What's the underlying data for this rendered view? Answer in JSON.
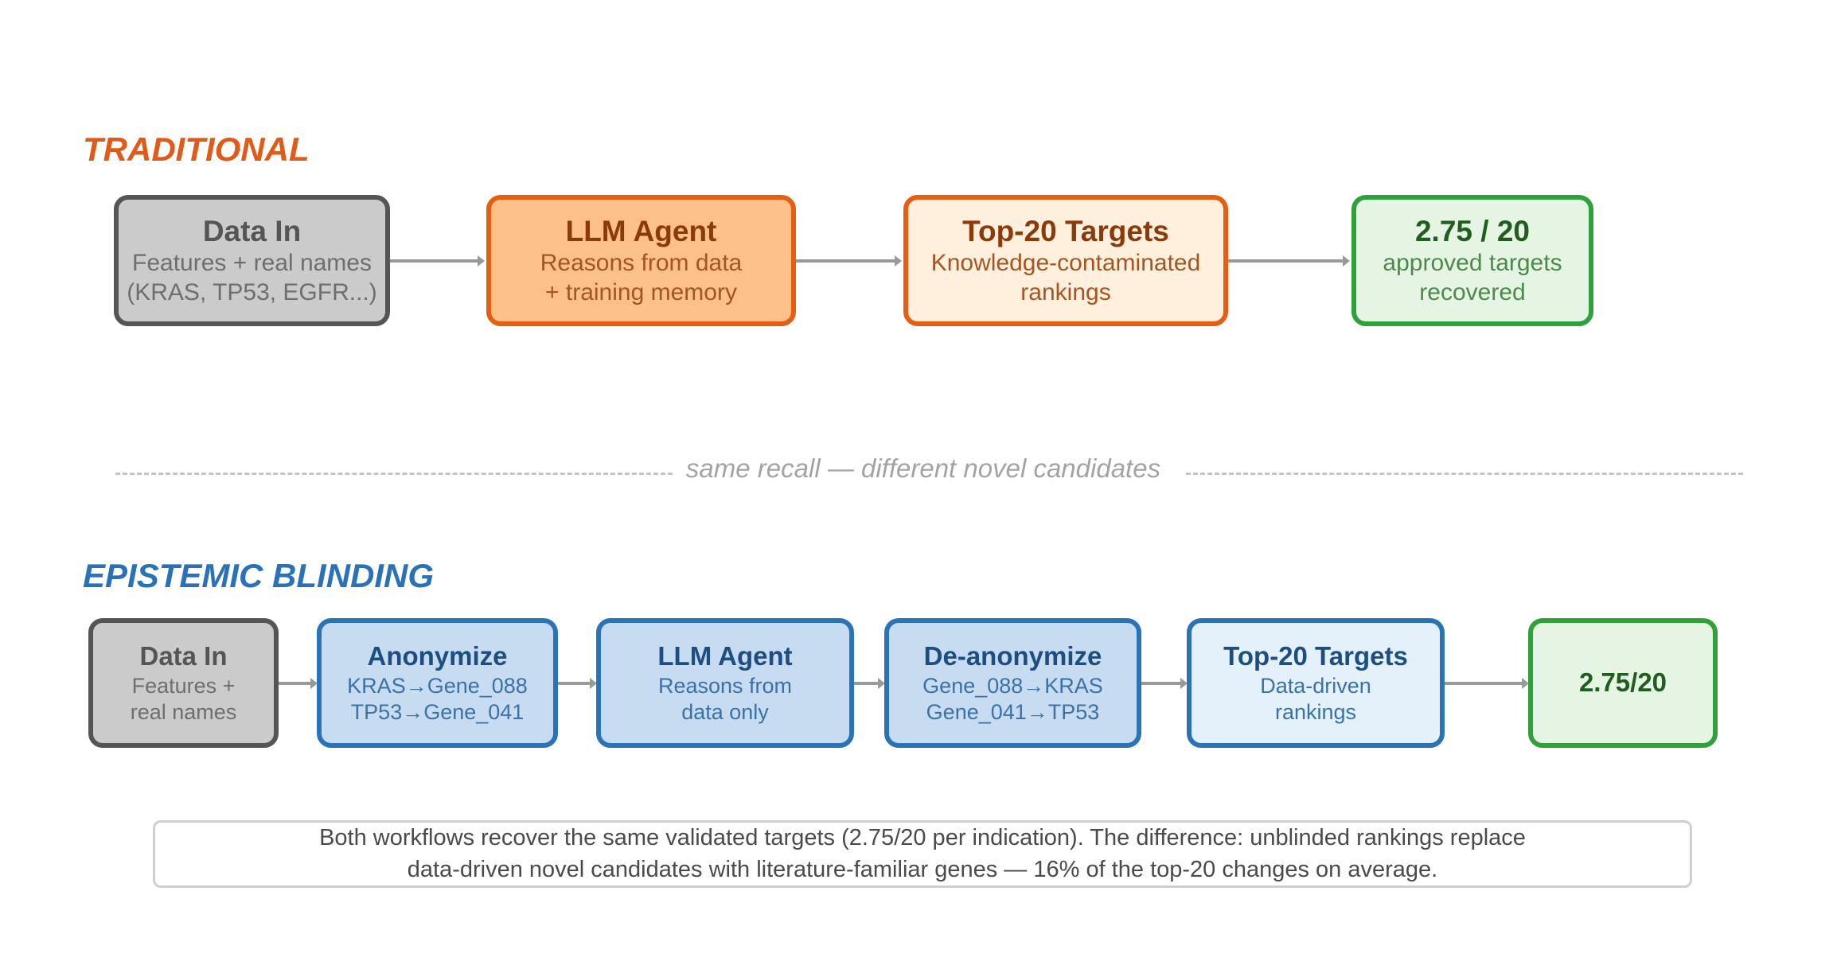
{
  "traditional": {
    "title": "TRADITIONAL",
    "title_color": "#e05a1a",
    "steps": [
      {
        "title": "Data In",
        "lines": [
          "Features + real names",
          "(KRAS, TP53, EGFR...)"
        ]
      },
      {
        "title": "LLM Agent",
        "lines": [
          "Reasons from data",
          "+ training memory"
        ]
      },
      {
        "title": "Top-20 Targets",
        "lines": [
          "Knowledge-contaminated",
          "rankings"
        ]
      },
      {
        "title": "2.75 / 20",
        "lines": [
          "approved targets",
          "recovered"
        ]
      }
    ]
  },
  "divider": {
    "text": "same recall — different novel candidates"
  },
  "blinding": {
    "title": "EPISTEMIC BLINDING",
    "title_color": "#2a72b8",
    "steps": [
      {
        "title": "Data In",
        "lines": [
          "Features +",
          "real names"
        ]
      },
      {
        "title": "Anonymize",
        "lines": [
          "KRAS→Gene_088",
          "TP53→Gene_041"
        ]
      },
      {
        "title": "LLM Agent",
        "lines": [
          "Reasons from",
          "data only"
        ]
      },
      {
        "title": "De-anonymize",
        "lines": [
          "Gene_088→KRAS",
          "Gene_041→TP53"
        ]
      },
      {
        "title": "Top-20 Targets",
        "lines": [
          "Data-driven",
          "rankings"
        ]
      },
      {
        "title": "2.75/20",
        "lines": []
      }
    ]
  },
  "footer": {
    "lines": [
      "Both workflows recover the same validated targets (2.75/20 per indication). The difference: unblinded rankings replace",
      "data-driven novel candidates with literature-familiar genes — 16% of the top-20 changes on average."
    ]
  }
}
